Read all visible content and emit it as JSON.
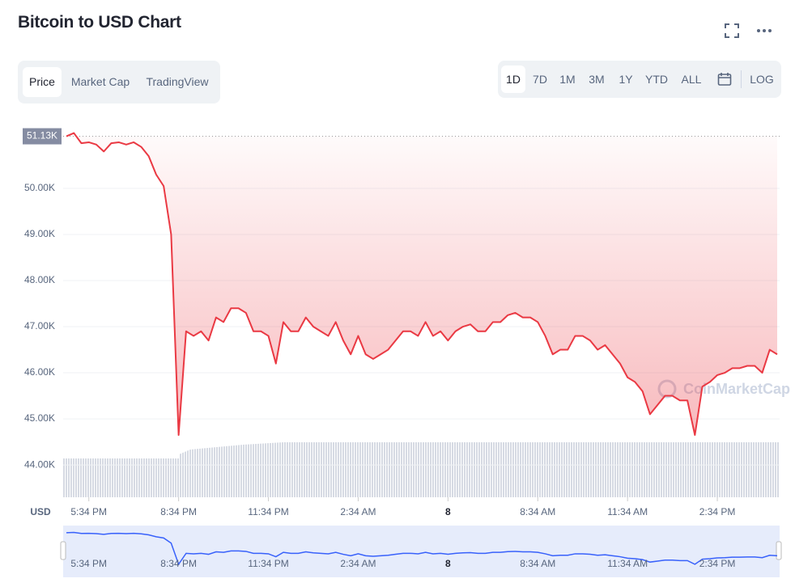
{
  "ui": {
    "title": "Bitcoin to USD Chart",
    "tabs": [
      "Price",
      "Market Cap",
      "TradingView"
    ],
    "ranges": [
      "1D",
      "7D",
      "1M",
      "3M",
      "1Y",
      "YTD",
      "ALL"
    ],
    "log": "LOG",
    "currency": "USD",
    "watermark": "CoinMarketCap"
  },
  "chart_data": {
    "type": "line",
    "categories": [
      null,
      null,
      null,
      "5:34 PM",
      null,
      null,
      null,
      null,
      null,
      null,
      null,
      null,
      null,
      null,
      null,
      "8:34 PM",
      null,
      null,
      null,
      null,
      null,
      null,
      null,
      null,
      null,
      null,
      null,
      "11:34 PM",
      null,
      null,
      null,
      null,
      null,
      null,
      null,
      null,
      null,
      null,
      null,
      "2:34 AM",
      null,
      null,
      null,
      null,
      null,
      null,
      null,
      null,
      null,
      null,
      null,
      "8",
      null,
      null,
      null,
      null,
      null,
      null,
      null,
      null,
      null,
      null,
      null,
      "8:34 AM",
      null,
      null,
      null,
      null,
      null,
      null,
      null,
      null,
      null,
      null,
      null,
      "11:34 AM",
      null,
      null,
      null,
      null,
      null,
      null,
      null,
      null,
      null,
      null,
      null,
      "2:34 PM",
      null,
      null,
      null,
      null,
      null,
      null,
      null,
      null
    ],
    "series": [
      {
        "name": "Price",
        "color": "#ea3943",
        "values": [
          51130,
          51200,
          50980,
          51000,
          50950,
          50800,
          50980,
          51000,
          50950,
          51000,
          50900,
          50700,
          50300,
          50050,
          49000,
          44650,
          46900,
          46800,
          46900,
          46700,
          47200,
          47100,
          47400,
          47400,
          47300,
          46900,
          46900,
          46800,
          46200,
          47100,
          46900,
          46900,
          47200,
          47000,
          46900,
          46800,
          47100,
          46700,
          46400,
          46800,
          46400,
          46300,
          46400,
          46500,
          46700,
          46900,
          46900,
          46800,
          47100,
          46800,
          46900,
          46700,
          46900,
          47000,
          47050,
          46900,
          46900,
          47100,
          47100,
          47250,
          47300,
          47200,
          47200,
          47100,
          46800,
          46400,
          46500,
          46500,
          46800,
          46800,
          46700,
          46500,
          46600,
          46400,
          46200,
          45900,
          45800,
          45600,
          45100,
          45300,
          45500,
          45500,
          45400,
          45400,
          44650,
          45700,
          45800,
          45950,
          46000,
          46100,
          46100,
          46150,
          46150,
          46000,
          46500,
          46400
        ]
      }
    ],
    "price_marker": {
      "value": 51130,
      "label": "51.13K"
    },
    "ylim": [
      43300,
      51280
    ],
    "yticks": [
      {
        "value": 44000,
        "label": "44.00K"
      },
      {
        "value": 45000,
        "label": "45.00K"
      },
      {
        "value": 46000,
        "label": "46.00K"
      },
      {
        "value": 47000,
        "label": "47.00K"
      },
      {
        "value": 48000,
        "label": "48.00K"
      },
      {
        "value": 49000,
        "label": "49.00K"
      },
      {
        "value": 50000,
        "label": "50.00K"
      }
    ],
    "grid": true
  }
}
